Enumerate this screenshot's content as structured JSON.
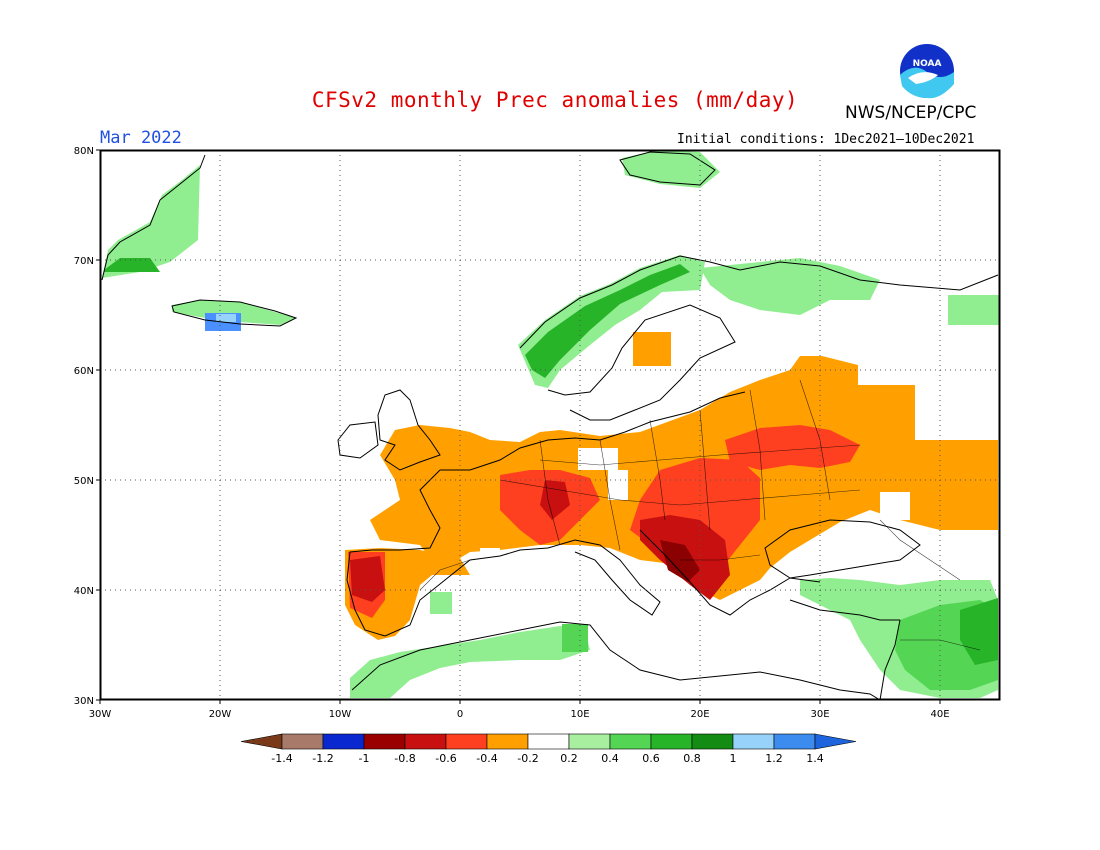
{
  "title": "CFSv2 monthly Prec anomalies (mm/day)",
  "agency": "NWS/NCEP/CPC",
  "logo_text": "NOAA",
  "valid_month": "Mar 2022",
  "initial_conditions": "Initial conditions: 1Dec2021—10Dec2021",
  "map": {
    "lon_range": [
      -30,
      45
    ],
    "lat_range": [
      30,
      80
    ],
    "lat_labels": [
      "80N",
      "70N",
      "60N",
      "50N",
      "40N",
      "30N"
    ],
    "lon_labels": [
      "30W",
      "20W",
      "10W",
      "0",
      "10E",
      "20E",
      "30E",
      "40E"
    ],
    "grid": "dotted, every 10 degrees",
    "colors": {
      "dry_strong": "#8b0000",
      "dry_mod": "#c81010",
      "dry_light": "#ff4020",
      "dry_weak": "#ffa000",
      "wet_weak": "#90ee90",
      "wet_mod": "#54d654",
      "wet_strong": "#28b428",
      "wet_blue": "#4a90ff"
    }
  },
  "colorbar": {
    "labels": [
      "-1.4",
      "-1.2",
      "-1",
      "-0.8",
      "-0.6",
      "-0.4",
      "-0.2",
      "0.2",
      "0.4",
      "0.6",
      "0.8",
      "1",
      "1.2",
      "1.4"
    ],
    "colors": [
      "#7a3a1a",
      "#a87a6a",
      "#0a28d0",
      "#9a0000",
      "#c81010",
      "#ff4020",
      "#ffa000",
      "#ffffff",
      "#a8f0a0",
      "#54d654",
      "#28b428",
      "#148c14",
      "#96d2fa",
      "#3c8cf0",
      "#1e64dc"
    ]
  }
}
